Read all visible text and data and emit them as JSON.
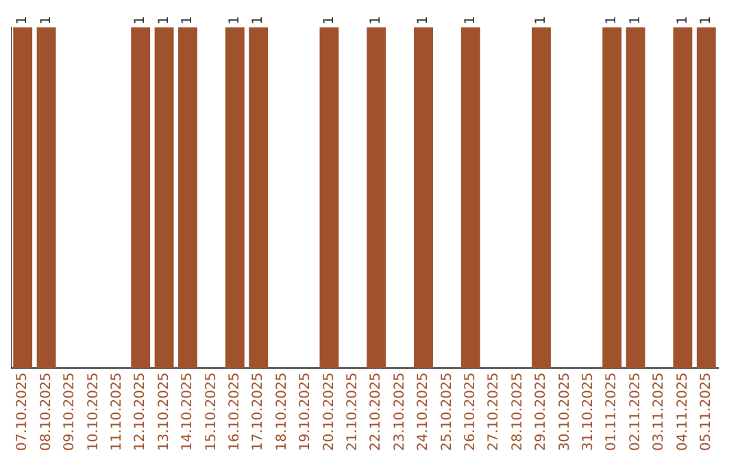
{
  "chart_data": {
    "type": "bar",
    "tick_labels": "x",
    "categories": [
      "07.10.2025",
      "08.10.2025",
      "09.10.2025",
      "10.10.2025",
      "11.10.2025",
      "12.10.2025",
      "13.10.2025",
      "14.10.2025",
      "15.10.2025",
      "16.10.2025",
      "17.10.2025",
      "18.10.2025",
      "19.10.2025",
      "20.10.2025",
      "21.10.2025",
      "22.10.2025",
      "23.10.2025",
      "24.10.2025",
      "25.10.2025",
      "26.10.2025",
      "27.10.2025",
      "28.10.2025",
      "29.10.2025",
      "30.10.2025",
      "31.10.2025",
      "01.11.2025",
      "02.11.2025",
      "03.11.2025",
      "04.11.2025",
      "05.11.2025"
    ],
    "values": [
      1,
      1,
      0,
      0,
      0,
      1,
      1,
      1,
      0,
      1,
      1,
      0,
      0,
      1,
      0,
      1,
      0,
      1,
      0,
      1,
      0,
      0,
      1,
      0,
      0,
      1,
      1,
      0,
      1,
      1
    ],
    "value_labels": [
      "1",
      "1",
      null,
      null,
      null,
      "1",
      "1",
      "1",
      null,
      "1",
      "1",
      null,
      null,
      "1",
      null,
      "1",
      null,
      "1",
      null,
      "1",
      null,
      null,
      "1",
      null,
      null,
      "1",
      "1",
      null,
      "1",
      "1"
    ],
    "color": "#a0522d",
    "grid": false,
    "legend": false
  }
}
